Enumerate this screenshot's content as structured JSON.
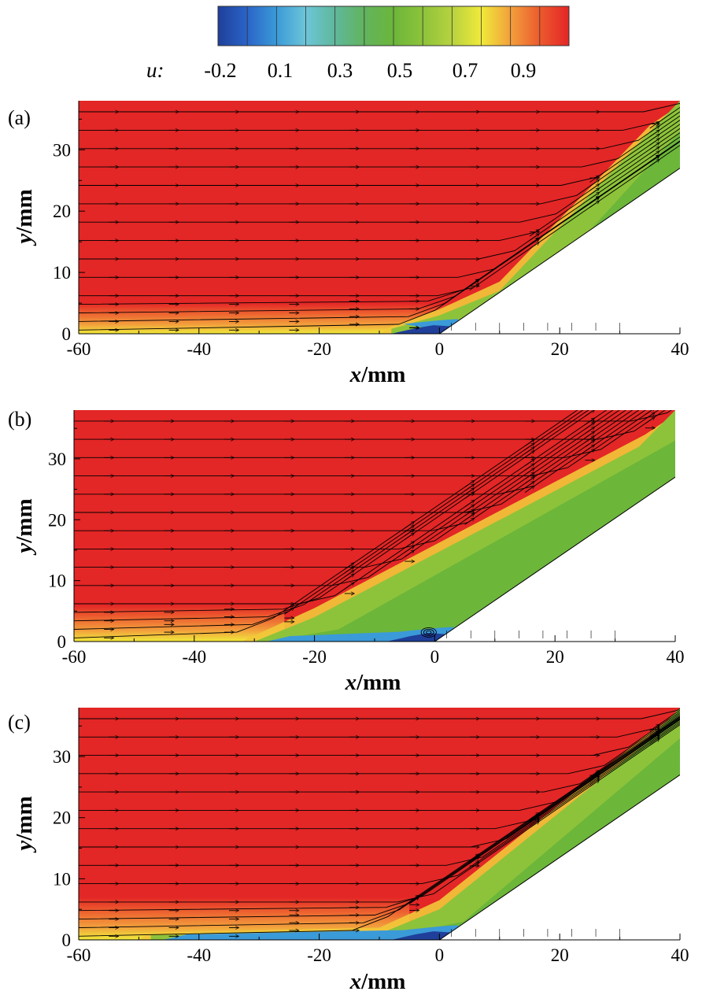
{
  "colorbar": {
    "variable_label": "u:",
    "tick_labels": [
      "-0.2",
      "0.1",
      "0.3",
      "0.5",
      "0.7",
      "0.9"
    ],
    "colors": [
      "#1f3f9a",
      "#2a64c8",
      "#3b9ad8",
      "#6cc5d8",
      "#5fb89a",
      "#62b35e",
      "#6cb63a",
      "#8dc33a",
      "#b7d23f",
      "#f0ea3a",
      "#f2a03c",
      "#ec5a2e",
      "#e32626"
    ]
  },
  "chart_data": [
    {
      "type": "contour",
      "panel_label": "(a)",
      "xlabel": "x/mm",
      "ylabel": "y/mm",
      "xlim": [
        -60,
        40
      ],
      "ylim": [
        0,
        38
      ],
      "xticks": [
        "-60",
        "-40",
        "-20",
        "0",
        "20",
        "40"
      ],
      "yticks": [
        "0",
        "10",
        "20",
        "30"
      ],
      "ramp_start_x": 0,
      "ramp_top": [
        40,
        27
      ],
      "shock_from": [
        0,
        3
      ],
      "shock_to": [
        40,
        38
      ],
      "separation_start_x": -8,
      "boundary_layer_height": 2,
      "edge_layer_height": 5
    },
    {
      "type": "contour",
      "panel_label": "(b)",
      "xlabel": "x/mm",
      "ylabel": "y/mm",
      "xlim": [
        -60,
        40
      ],
      "ylim": [
        0,
        38
      ],
      "xticks": [
        "-60",
        "-40",
        "-20",
        "0",
        "20",
        "40"
      ],
      "yticks": [
        "0",
        "10",
        "20",
        "30"
      ],
      "ramp_start_x": 0,
      "ramp_top": [
        40,
        27
      ],
      "shock_from": [
        -30,
        0
      ],
      "shock_to": [
        40,
        38
      ],
      "separation_start_x": -30,
      "vortex_center": [
        -1,
        1.5
      ],
      "boundary_layer_height": 2,
      "edge_layer_height": 6
    },
    {
      "type": "contour",
      "panel_label": "(c)",
      "xlabel": "x/mm",
      "ylabel": "y/mm",
      "xlim": [
        -60,
        40
      ],
      "ylim": [
        0,
        38
      ],
      "xticks": [
        "-60",
        "-40",
        "-20",
        "0",
        "20",
        "40"
      ],
      "yticks": [
        "0",
        "10",
        "20",
        "30"
      ],
      "ramp_start_x": 0,
      "ramp_top": [
        40,
        27
      ],
      "shock_from": [
        -10,
        1
      ],
      "shock_to": [
        40,
        38
      ],
      "separation_start_x": -48,
      "boundary_layer_height": 2,
      "edge_layer_height": 7
    }
  ]
}
